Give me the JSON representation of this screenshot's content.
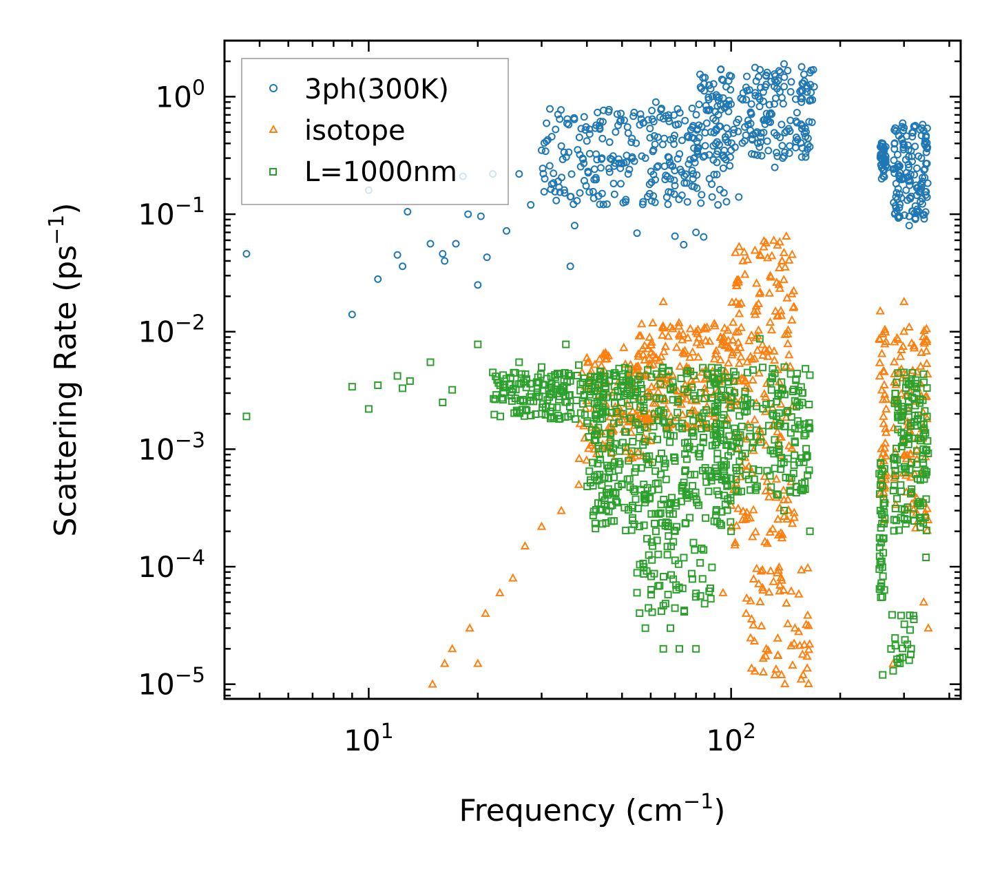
{
  "chart_data": {
    "type": "scatter",
    "xscale": "log",
    "yscale": "log",
    "xlabel": "Frequency (cm",
    "xlabel_sup": "−1",
    "xlabel_end": ")",
    "ylabel": "Scattering Rate (ps",
    "ylabel_sup": "−1",
    "ylabel_end": ")",
    "xlim": [
      4.0,
      430.0
    ],
    "ylim": [
      7.5e-06,
      3.0
    ],
    "x_ticks": [
      {
        "value": 10,
        "base": "10",
        "exp": "1"
      },
      {
        "value": 100,
        "base": "10",
        "exp": "2"
      }
    ],
    "y_ticks": [
      {
        "value": 1,
        "base": "10",
        "exp": "0"
      },
      {
        "value": 0.1,
        "base": "10",
        "exp": "−1"
      },
      {
        "value": 0.01,
        "base": "10",
        "exp": "−2"
      },
      {
        "value": 0.001,
        "base": "10",
        "exp": "−3"
      },
      {
        "value": 0.0001,
        "base": "10",
        "exp": "−4"
      },
      {
        "value": 1e-05,
        "base": "10",
        "exp": "−5"
      }
    ],
    "legend_position": "top-left",
    "series": [
      {
        "name": "3ph(300K)",
        "marker": "circle",
        "color": "#1f77b4",
        "points": [
          [
            4.6,
            0.046
          ],
          [
            9.0,
            0.014
          ],
          [
            10.0,
            0.16
          ],
          [
            10.6,
            0.028
          ],
          [
            12.0,
            0.045
          ],
          [
            12.4,
            0.036
          ],
          [
            12.8,
            0.105
          ],
          [
            14.8,
            0.056
          ],
          [
            16.0,
            0.046
          ],
          [
            16.2,
            0.04
          ],
          [
            17.4,
            0.056
          ],
          [
            18.2,
            0.21
          ],
          [
            18.8,
            0.1
          ],
          [
            20.0,
            0.025
          ],
          [
            20.4,
            0.096
          ],
          [
            21.2,
            0.043
          ],
          [
            22.0,
            0.22
          ],
          [
            24.0,
            0.072
          ],
          [
            26.0,
            0.22
          ],
          [
            28.0,
            0.12
          ],
          [
            30.0,
            0.35
          ],
          [
            32.0,
            0.18
          ],
          [
            34.0,
            0.38
          ],
          [
            36.0,
            0.036
          ],
          [
            37.0,
            0.08
          ],
          [
            40.0,
            0.42
          ],
          [
            44.0,
            0.3
          ],
          [
            48.0,
            0.5
          ],
          [
            52.0,
            0.22
          ],
          [
            55.0,
            0.069
          ],
          [
            58.0,
            0.3
          ],
          [
            62.0,
            0.9
          ],
          [
            65.0,
            0.65
          ],
          [
            68.0,
            0.2
          ],
          [
            70.0,
            0.065
          ],
          [
            74.0,
            0.055
          ],
          [
            78.0,
            0.45
          ],
          [
            80.0,
            0.07
          ],
          [
            84.0,
            0.064
          ],
          [
            88.0,
            0.5
          ],
          [
            92.0,
            0.12
          ],
          [
            96.0,
            0.8
          ],
          [
            100.0,
            0.35
          ],
          [
            105.0,
            0.14
          ],
          [
            110.0,
            1.2
          ],
          [
            118.0,
            0.5
          ],
          [
            125.0,
            1.5
          ],
          [
            132.0,
            0.25
          ],
          [
            140.0,
            1.9
          ],
          [
            146.0,
            1.1
          ],
          [
            152.0,
            0.6
          ],
          [
            158.0,
            1.3
          ],
          [
            165.0,
            1.6
          ],
          [
            262.0,
            0.4
          ],
          [
            270.0,
            0.25
          ],
          [
            285.0,
            0.14
          ],
          [
            300.0,
            0.2
          ],
          [
            310.0,
            0.08
          ],
          [
            320.0,
            0.55
          ],
          [
            335.0,
            0.3
          ],
          [
            345.0,
            0.27
          ]
        ],
        "cluster_bands": [
          [
            30,
            100,
            0.12,
            0.8,
            260
          ],
          [
            80,
            170,
            0.3,
            1.8,
            220
          ],
          [
            258,
            268,
            0.2,
            0.42,
            40
          ],
          [
            280,
            350,
            0.09,
            0.6,
            140
          ]
        ]
      },
      {
        "name": "isotope",
        "marker": "triangle",
        "color": "#ff7f0e",
        "points": [
          [
            15.0,
            1e-05
          ],
          [
            16.2,
            1.5e-05
          ],
          [
            17.0,
            2e-05
          ],
          [
            19.0,
            3e-05
          ],
          [
            20.0,
            1.5e-05
          ],
          [
            21.0,
            4e-05
          ],
          [
            23.0,
            6e-05
          ],
          [
            25.0,
            8e-05
          ],
          [
            27.0,
            0.00015
          ],
          [
            30.0,
            0.00022
          ],
          [
            34.0,
            0.0003
          ],
          [
            38.0,
            0.0005
          ],
          [
            42.0,
            0.001
          ],
          [
            48.0,
            0.002
          ],
          [
            55.0,
            0.005
          ],
          [
            65.0,
            0.018
          ],
          [
            68.0,
            0.011
          ],
          [
            80.0,
            0.01
          ],
          [
            95.0,
            6e-05
          ],
          [
            110.0,
            4e-05
          ],
          [
            118.0,
            0.015
          ],
          [
            125.0,
            2e-05
          ],
          [
            132.0,
            1.2e-05
          ],
          [
            142.0,
            0.065
          ],
          [
            150.0,
            3e-05
          ],
          [
            158.0,
            1.2e-05
          ],
          [
            258.0,
            0.015
          ],
          [
            265.0,
            0.00025
          ],
          [
            280.0,
            1.5e-05
          ],
          [
            300.0,
            0.018
          ],
          [
            315.0,
            0.008
          ],
          [
            340.0,
            5e-05
          ],
          [
            350.0,
            3e-05
          ]
        ],
        "cluster_bands": [
          [
            38,
            60,
            0.0008,
            0.008,
            120
          ],
          [
            55,
            100,
            0.0015,
            0.012,
            180
          ],
          [
            100,
            150,
            0.00015,
            0.06,
            200
          ],
          [
            110,
            165,
            1e-05,
            0.0001,
            60
          ],
          [
            256,
            268,
            0.0003,
            0.015,
            40
          ],
          [
            280,
            350,
            0.0002,
            0.012,
            100
          ]
        ]
      },
      {
        "name": "L=1000nm",
        "marker": "square",
        "color": "#2ca02c",
        "points": [
          [
            4.6,
            0.0019
          ],
          [
            9.0,
            0.0034
          ],
          [
            10.0,
            0.0022
          ],
          [
            10.6,
            0.0035
          ],
          [
            12.0,
            0.0042
          ],
          [
            12.4,
            0.0033
          ],
          [
            13.0,
            0.0038
          ],
          [
            14.8,
            0.0055
          ],
          [
            16.0,
            0.0025
          ],
          [
            17.0,
            0.0032
          ],
          [
            20.0,
            0.0078
          ],
          [
            22.0,
            0.0045
          ],
          [
            26.0,
            0.0055
          ],
          [
            30.0,
            0.005
          ],
          [
            35.0,
            0.0078
          ],
          [
            38.0,
            0.0052
          ],
          [
            42.0,
            0.0012
          ],
          [
            50.0,
            0.0005
          ],
          [
            55.0,
            6e-05
          ],
          [
            58.0,
            3e-05
          ],
          [
            62.0,
            0.0002
          ],
          [
            65.0,
            2e-05
          ],
          [
            68.0,
            3e-05
          ],
          [
            72.0,
            2e-05
          ],
          [
            80.0,
            2e-05
          ],
          [
            90.0,
            0.004
          ],
          [
            100.0,
            0.0002
          ],
          [
            110.0,
            0.0006
          ],
          [
            120.0,
            0.0087
          ],
          [
            130.0,
            0.004
          ],
          [
            140.0,
            0.0003
          ],
          [
            150.0,
            0.0015
          ],
          [
            165.0,
            0.0002
          ],
          [
            258.0,
            0.0003
          ],
          [
            262.0,
            1.2e-05
          ],
          [
            280.0,
            1.3e-05
          ],
          [
            300.0,
            0.0045
          ],
          [
            310.0,
            1.6e-05
          ],
          [
            325.0,
            0.003
          ],
          [
            345.0,
            0.00012
          ]
        ],
        "cluster_bands": [
          [
            22,
            45,
            0.0018,
            0.0045,
            160
          ],
          [
            40,
            100,
            0.0002,
            0.005,
            420
          ],
          [
            90,
            165,
            0.0004,
            0.005,
            200
          ],
          [
            55,
            90,
            4e-05,
            0.0002,
            60
          ],
          [
            256,
            266,
            5e-05,
            0.0008,
            40
          ],
          [
            280,
            350,
            0.0002,
            0.0045,
            140
          ],
          [
            275,
            320,
            1.5e-05,
            4e-05,
            20
          ]
        ]
      }
    ]
  }
}
